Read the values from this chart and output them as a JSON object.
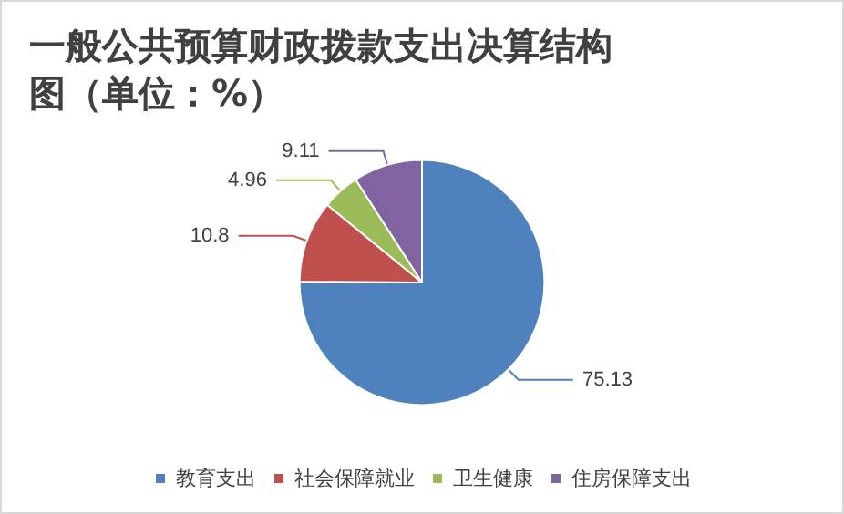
{
  "chart_data": {
    "type": "pie",
    "title": "一般公共预算财政拨款支出决算结构图（单位：%）",
    "categories": [
      "教育支出",
      "社会保障就业",
      "卫生健康",
      "住房保障支出"
    ],
    "values": [
      75.13,
      10.8,
      4.96,
      9.11
    ],
    "colors": [
      "#4f81bd",
      "#c0504d",
      "#9bbb59",
      "#8064a2"
    ],
    "data_labels": true,
    "legend": "bottom"
  }
}
